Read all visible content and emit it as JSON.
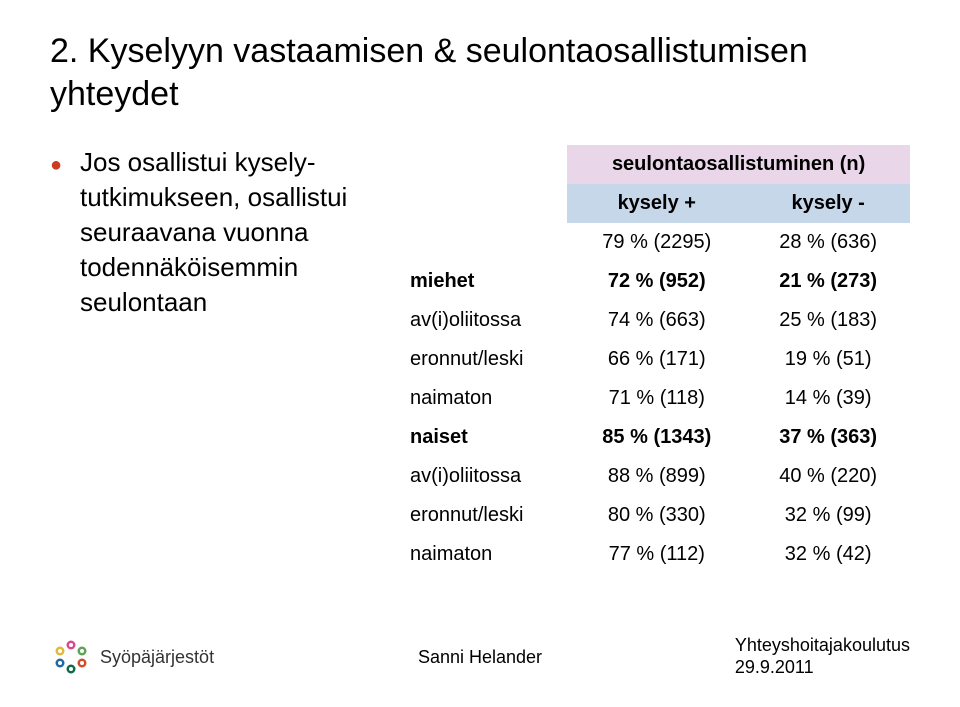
{
  "title": "2. Kyselyyn vastaamisen & seulontaosallistumisen yhteydet",
  "bullet": "Jos osallistui kysely-tutkimukseen, osallistui seuraavana vuonna todennäköisemmin seulontaan",
  "table": {
    "header_span": "seulontaosallistuminen (n)",
    "sub_headers": [
      "kysely +",
      "kysely -"
    ],
    "totals": [
      "79 % (2295)",
      "28 % (636)"
    ],
    "rows": [
      {
        "label": "miehet",
        "bold": true,
        "c1": "72 % (952)",
        "c2": "21 % (273)"
      },
      {
        "label": "av(i)oliitossa",
        "bold": false,
        "c1": "74 % (663)",
        "c2": "25 % (183)"
      },
      {
        "label": "eronnut/leski",
        "bold": false,
        "c1": "66 % (171)",
        "c2": "19 % (51)"
      },
      {
        "label": "naimaton",
        "bold": false,
        "c1": "71 % (118)",
        "c2": "14 % (39)"
      },
      {
        "label": "naiset",
        "bold": true,
        "c1": "85 % (1343)",
        "c2": "37 % (363)"
      },
      {
        "label": "av(i)oliitossa",
        "bold": false,
        "c1": "88 % (899)",
        "c2": "40 % (220)"
      },
      {
        "label": "eronnut/leski",
        "bold": false,
        "c1": "80 % (330)",
        "c2": "32 % (99)"
      },
      {
        "label": "naimaton",
        "bold": false,
        "c1": "77 % (112)",
        "c2": "32 % (42)"
      }
    ]
  },
  "footer": {
    "logo_text": "Syöpäjärjestöt",
    "center": "Sanni Helander",
    "right_line1": "Yhteyshoitajakoulutus",
    "right_line2": "29.9.2011"
  },
  "colors": {
    "bullet": "#cc3a1f",
    "hdr_span_bg": "#e9d6e8",
    "hdr_sub_bg": "#c6d7ea"
  }
}
